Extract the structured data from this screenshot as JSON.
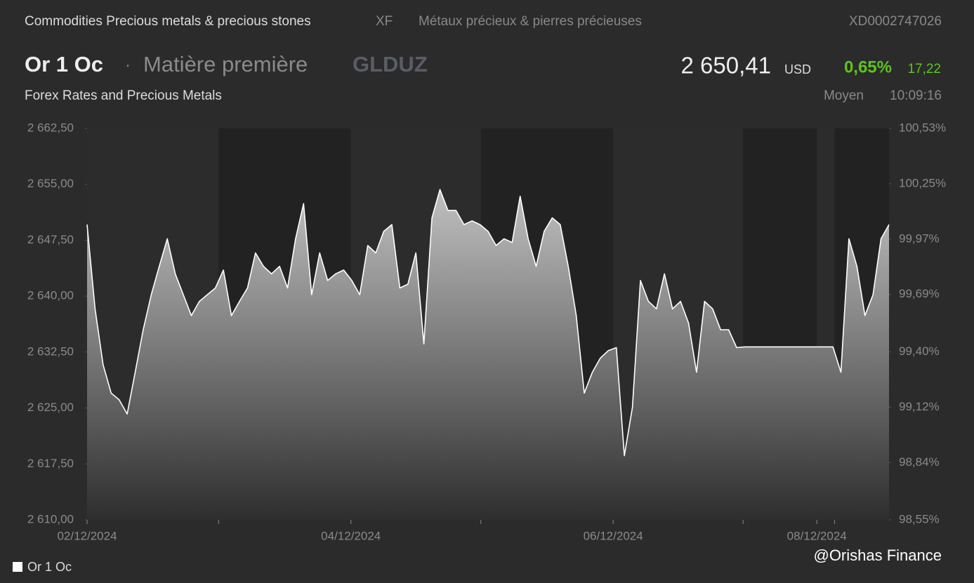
{
  "header": {
    "category": "Commodities Precious metals & precious stones",
    "exchange": "XF",
    "category_fr": "Métaux précieux & pierres précieuses",
    "isin": "XD0002747026",
    "kind": "Matière première",
    "ticker": "GLDUZ",
    "price": "2 650,41",
    "currency": "USD",
    "change_pct": "0,65%",
    "change": "17,22",
    "source": "Forex Rates and Precious Metals",
    "price_type": "Moyen",
    "time": "10:09:16"
  },
  "watermark": "@Orishas Finance",
  "chart_data": {
    "type": "area",
    "title": "Or 1 Oc",
    "series": [
      {
        "name": "Or 1 Oc",
        "color": "#ffffff",
        "values": [
          2649.6,
          2638.3,
          2630.8,
          2627.0,
          2626.1,
          2624.2,
          2629.8,
          2635.5,
          2640.2,
          2644.0,
          2647.7,
          2643.0,
          2640.2,
          2637.4,
          2639.3,
          2640.2,
          2641.1,
          2643.5,
          2637.4,
          2639.3,
          2641.1,
          2645.8,
          2644.0,
          2643.0,
          2644.0,
          2641.1,
          2647.7,
          2652.4,
          2640.2,
          2645.8,
          2642.1,
          2643.0,
          2643.5,
          2642.1,
          2640.2,
          2646.8,
          2645.8,
          2648.7,
          2649.6,
          2641.1,
          2641.6,
          2645.8,
          2633.6,
          2650.5,
          2654.3,
          2651.5,
          2651.5,
          2649.6,
          2650.1,
          2649.6,
          2648.7,
          2646.8,
          2647.7,
          2647.2,
          2653.4,
          2647.7,
          2644.0,
          2648.7,
          2650.5,
          2649.6,
          2644.0,
          2637.4,
          2627.0,
          2629.8,
          2631.7,
          2632.7,
          2633.1,
          2618.6,
          2625.1,
          2642.1,
          2639.3,
          2638.3,
          2643.0,
          2638.3,
          2639.3,
          2636.4,
          2629.8,
          2639.3,
          2638.3,
          2635.5,
          2635.5,
          2633.1,
          2633.2,
          2633.2,
          2633.2,
          2633.2,
          2633.2,
          2633.2,
          2633.2,
          2633.2,
          2633.2,
          2633.2,
          2633.2,
          2633.2,
          2629.8,
          2647.7,
          2644.0,
          2637.4,
          2640.2,
          2647.7,
          2649.6
        ]
      }
    ],
    "xlim": [
      0,
      100
    ],
    "xticks": [
      {
        "value": 0,
        "label": "02/12/2024"
      },
      {
        "value": 16.4,
        "label": null
      },
      {
        "value": 32.9,
        "label": "04/12/2024"
      },
      {
        "value": 49.1,
        "label": null
      },
      {
        "value": 65.6,
        "label": "06/12/2024"
      },
      {
        "value": 81.8,
        "label": null
      },
      {
        "value": 91,
        "label": "08/12/2024"
      },
      {
        "value": 93.2,
        "label": null
      }
    ],
    "ylim": [
      2610,
      2662.5
    ],
    "yticks": [
      {
        "value": 2610,
        "label": "2 610,00"
      },
      {
        "value": 2617.5,
        "label": "2 617,50"
      },
      {
        "value": 2625,
        "label": "2 625,00"
      },
      {
        "value": 2632.5,
        "label": "2 632,50"
      },
      {
        "value": 2640,
        "label": "2 640,00"
      },
      {
        "value": 2647.5,
        "label": "2 647,50"
      },
      {
        "value": 2655,
        "label": "2 655,00"
      },
      {
        "value": 2662.5,
        "label": "2 662,50"
      }
    ],
    "y2lim": [
      98.55,
      100.53
    ],
    "y2ticks": [
      {
        "value": 98.55,
        "label": "98,55%"
      },
      {
        "value": 98.84,
        "label": "98,84%"
      },
      {
        "value": 99.12,
        "label": "99,12%"
      },
      {
        "value": 99.4,
        "label": "99,40%"
      },
      {
        "value": 99.69,
        "label": "99,69%"
      },
      {
        "value": 99.97,
        "label": "99,97%"
      },
      {
        "value": 100.25,
        "label": "100,25%"
      },
      {
        "value": 100.53,
        "label": "100,53%"
      }
    ]
  }
}
